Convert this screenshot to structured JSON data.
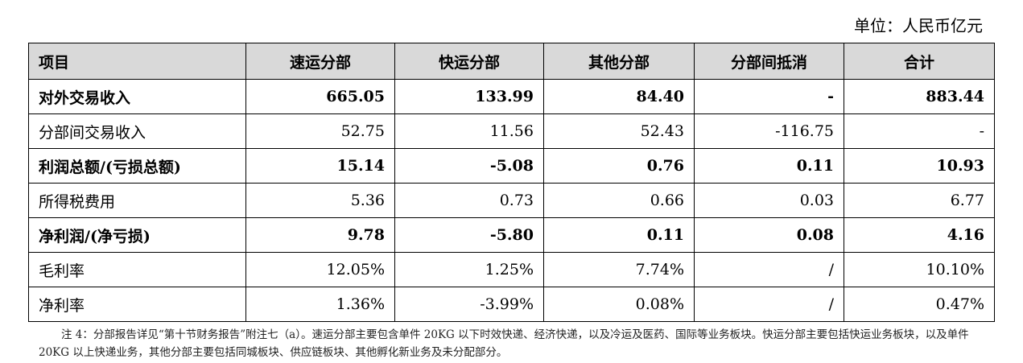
{
  "unit": "单位：人民币亿元",
  "table": {
    "header": [
      "项目",
      "速运分部",
      "快运分部",
      "其他分部",
      "分部间抵消",
      "合计"
    ],
    "rows": [
      {
        "bold": true,
        "cells": [
          "对外交易收入",
          "665.05",
          "133.99",
          "84.40",
          "-",
          "883.44"
        ]
      },
      {
        "bold": false,
        "cells": [
          "分部间交易收入",
          "52.75",
          "11.56",
          "52.43",
          "-116.75",
          "-"
        ]
      },
      {
        "bold": true,
        "cells": [
          "利润总额/(亏损总额)",
          "15.14",
          "-5.08",
          "0.76",
          "0.11",
          "10.93"
        ]
      },
      {
        "bold": false,
        "cells": [
          "所得税费用",
          "5.36",
          "0.73",
          "0.66",
          "0.03",
          "6.77"
        ]
      },
      {
        "bold": true,
        "cells": [
          "净利润/(净亏损)",
          "9.78",
          "-5.80",
          "0.11",
          "0.08",
          "4.16"
        ]
      },
      {
        "bold": false,
        "cells": [
          "毛利率",
          "12.05%",
          "1.25%",
          "7.74%",
          "/",
          "10.10%"
        ]
      },
      {
        "bold": false,
        "cells": [
          "净利率",
          "1.36%",
          "-3.99%",
          "0.08%",
          "/",
          "0.47%"
        ]
      }
    ]
  },
  "note": "注 4：分部报告详见“第十节财务报告”附注七（a）。速运分部主要包含单件 20KG 以下时效快递、经济快递，以及冷运及医药、国际等业务板块。快运分部主要包括快运业务板块，以及单件 20KG 以上快递业务，其他分部主要包括同城板块、供应链板块、其他孵化新业务及未分配部分。"
}
